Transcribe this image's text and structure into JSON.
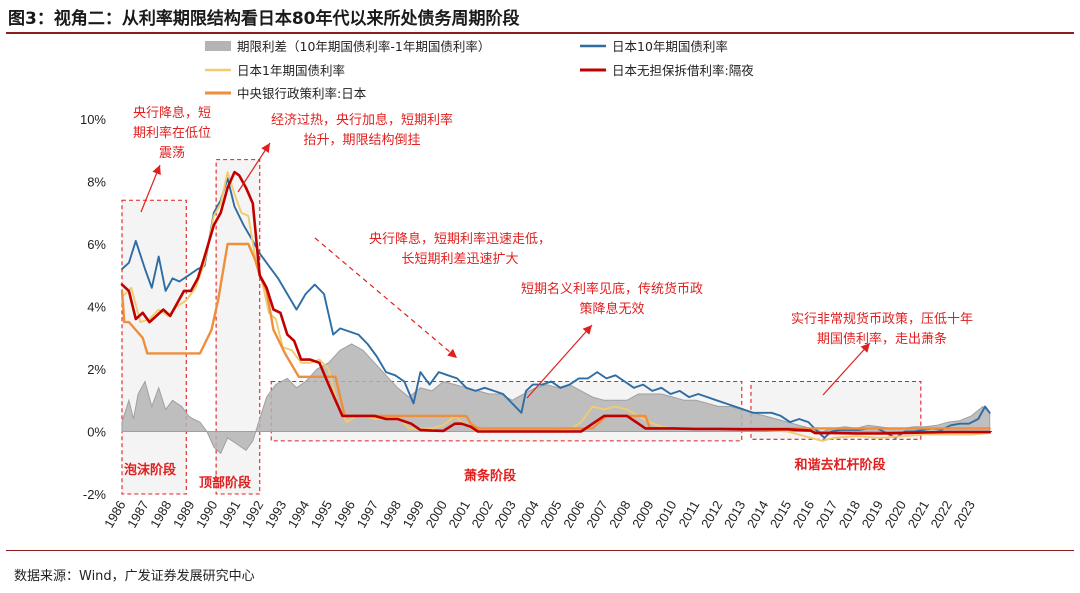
{
  "figure": {
    "title": "图3：视角二：从利率期限结构看日本80年代以来所处债务周期阶段",
    "source": "数据来源：Wind，广发证券发展研究中心"
  },
  "chart_data": {
    "type": "line",
    "title": "图3：视角二：从利率期限结构看日本80年代以来所处债务周期阶段",
    "xlabel": "",
    "ylabel": "",
    "ylim": [
      -2,
      10
    ],
    "xlim": [
      1986,
      2023.9
    ],
    "yticks": [
      "10%",
      "8%",
      "6%",
      "4%",
      "2%",
      "0%",
      "-2%"
    ],
    "xticks": [
      "1986",
      "1987",
      "1988",
      "1989",
      "1990",
      "1991",
      "1992",
      "1993",
      "1994",
      "1995",
      "1996",
      "1997",
      "1998",
      "1999",
      "2000",
      "2001",
      "2002",
      "2003",
      "2004",
      "2005",
      "2006",
      "2007",
      "2008",
      "2009",
      "2010",
      "2011",
      "2012",
      "2013",
      "2014",
      "2015",
      "2016",
      "2017",
      "2018",
      "2019",
      "2020",
      "2021",
      "2022",
      "2023"
    ],
    "legend": [
      {
        "key": "spread",
        "label": "期限利差（10年期国债利率-1年期国债利率）",
        "color": "#b4b4b4"
      },
      {
        "key": "jgb10",
        "label": "日本10年期国债利率",
        "color": "#2e6da4"
      },
      {
        "key": "jgb1",
        "label": "日本1年期国债利率",
        "color": "#f0cc6e"
      },
      {
        "key": "call",
        "label": "日本无担保拆借利率:隔夜",
        "color": "#c00000"
      },
      {
        "key": "policy",
        "label": "中央银行政策利率:日本",
        "color": "#ed8f3c"
      }
    ],
    "series": [
      {
        "name": "日本10年期国债利率",
        "key": "jgb10",
        "color": "#2e6da4",
        "x": [
          1986.0,
          1986.3,
          1986.6,
          1987.0,
          1987.3,
          1987.6,
          1987.9,
          1988.2,
          1988.5,
          1988.9,
          1989.3,
          1989.6,
          1990.0,
          1990.3,
          1990.6,
          1990.9,
          1991.3,
          1991.7,
          1992.0,
          1992.4,
          1992.8,
          1993.2,
          1993.6,
          1994.0,
          1994.4,
          1994.8,
          1995.2,
          1995.5,
          1995.9,
          1996.3,
          1996.7,
          1997.1,
          1997.5,
          1997.9,
          1998.3,
          1998.7,
          1999.0,
          1999.4,
          1999.8,
          2000.2,
          2000.6,
          2001.0,
          2001.4,
          2001.8,
          2002.2,
          2002.6,
          2003.0,
          2003.4,
          2003.6,
          2003.9,
          2004.3,
          2004.7,
          2005.1,
          2005.5,
          2005.9,
          2006.3,
          2006.7,
          2007.1,
          2007.5,
          2007.9,
          2008.3,
          2008.7,
          2009.1,
          2009.5,
          2009.9,
          2010.3,
          2010.7,
          2011.1,
          2011.5,
          2011.9,
          2012.3,
          2012.7,
          2013.1,
          2013.5,
          2013.9,
          2014.3,
          2014.7,
          2015.1,
          2015.5,
          2015.9,
          2016.3,
          2016.6,
          2016.9,
          2017.3,
          2017.7,
          2018.1,
          2018.5,
          2018.9,
          2019.3,
          2019.7,
          2020.1,
          2020.5,
          2020.9,
          2021.3,
          2021.7,
          2022.1,
          2022.5,
          2022.9,
          2023.3,
          2023.6,
          2023.8
        ],
        "y": [
          5.2,
          5.4,
          6.1,
          5.2,
          4.6,
          5.6,
          4.5,
          4.9,
          4.8,
          5.0,
          5.2,
          5.3,
          7.0,
          7.4,
          8.1,
          7.2,
          6.6,
          6.1,
          5.7,
          5.3,
          4.9,
          4.4,
          3.9,
          4.4,
          4.7,
          4.4,
          3.1,
          3.3,
          3.2,
          3.1,
          2.8,
          2.4,
          1.9,
          1.8,
          1.6,
          0.9,
          1.9,
          1.5,
          1.9,
          1.8,
          1.7,
          1.4,
          1.3,
          1.4,
          1.3,
          1.2,
          0.9,
          0.6,
          1.3,
          1.5,
          1.5,
          1.6,
          1.4,
          1.5,
          1.7,
          1.7,
          1.9,
          1.7,
          1.8,
          1.6,
          1.4,
          1.5,
          1.3,
          1.4,
          1.2,
          1.3,
          1.1,
          1.2,
          1.1,
          1.0,
          0.9,
          0.8,
          0.7,
          0.6,
          0.6,
          0.6,
          0.5,
          0.3,
          0.4,
          0.3,
          0.0,
          -0.2,
          0.0,
          0.05,
          0.05,
          0.05,
          0.1,
          0.1,
          -0.05,
          -0.2,
          0.0,
          0.0,
          0.05,
          0.1,
          0.05,
          0.2,
          0.25,
          0.25,
          0.4,
          0.8,
          0.6
        ]
      },
      {
        "name": "日本1年期国债利率",
        "key": "jgb1",
        "color": "#f0cc6e",
        "x": [
          1986.0,
          1986.4,
          1986.8,
          1987.2,
          1987.6,
          1988.0,
          1988.4,
          1988.8,
          1989.2,
          1989.6,
          1990.0,
          1990.3,
          1990.6,
          1990.9,
          1991.2,
          1991.5,
          1991.8,
          1992.1,
          1992.4,
          1992.7,
          1993.0,
          1993.4,
          1993.8,
          1994.2,
          1994.6,
          1995.0,
          1995.4,
          1995.8,
          1996.2,
          1996.6,
          1997.0,
          1997.5,
          1998.0,
          1998.5,
          1999.0,
          1999.5,
          2000.0,
          2000.5,
          2001.0,
          2001.4,
          2002.0,
          2003.0,
          2004.0,
          2005.0,
          2005.5,
          2006.0,
          2006.5,
          2007.0,
          2007.5,
          2008.0,
          2008.5,
          2009.0,
          2009.5,
          2010.0,
          2011.0,
          2012.0,
          2013.0,
          2014.0,
          2015.0,
          2016.0,
          2016.5,
          2017.0,
          2018.0,
          2019.0,
          2020.0,
          2021.0,
          2022.0,
          2023.0,
          2023.8
        ],
        "y": [
          4.3,
          4.6,
          3.5,
          3.6,
          3.9,
          3.7,
          4.0,
          4.2,
          4.6,
          5.4,
          6.9,
          7.3,
          8.3,
          7.6,
          7.0,
          6.9,
          5.6,
          4.8,
          3.8,
          3.6,
          2.7,
          2.6,
          2.2,
          2.2,
          2.3,
          2.0,
          0.8,
          0.3,
          0.5,
          0.5,
          0.4,
          0.4,
          0.5,
          0.1,
          0.1,
          0.1,
          0.2,
          0.5,
          0.2,
          0.02,
          0.01,
          0.01,
          0.01,
          0.01,
          0.05,
          0.3,
          0.8,
          0.7,
          0.8,
          0.7,
          0.5,
          0.3,
          0.15,
          0.1,
          0.1,
          0.1,
          0.1,
          0.05,
          0.0,
          -0.2,
          -0.3,
          -0.2,
          -0.15,
          -0.2,
          -0.15,
          -0.1,
          -0.1,
          -0.1,
          -0.05
        ]
      },
      {
        "name": "日本无担保拆借利率:隔夜",
        "key": "call",
        "color": "#c00000",
        "x": [
          1986.0,
          1986.3,
          1986.6,
          1986.9,
          1987.2,
          1987.5,
          1987.8,
          1988.1,
          1988.4,
          1988.7,
          1989.0,
          1989.3,
          1989.6,
          1990.0,
          1990.3,
          1990.6,
          1990.9,
          1991.1,
          1991.4,
          1991.7,
          1992.0,
          1992.3,
          1992.6,
          1992.9,
          1993.2,
          1993.5,
          1993.8,
          1994.2,
          1994.6,
          1995.0,
          1995.3,
          1995.6,
          1995.9,
          1996.5,
          1997.0,
          1997.5,
          1998.0,
          1998.6,
          1999.0,
          1999.5,
          2000.0,
          2000.5,
          2000.8,
          2001.2,
          2001.5,
          2002.0,
          2003.0,
          2004.0,
          2005.0,
          2006.0,
          2006.5,
          2007.0,
          2007.5,
          2008.0,
          2008.8,
          2009.0,
          2010.0,
          2011.0,
          2012.0,
          2013.0,
          2014.0,
          2015.0,
          2016.0,
          2016.2,
          2017.0,
          2018.0,
          2019.0,
          2020.0,
          2021.0,
          2022.0,
          2023.0,
          2023.8
        ],
        "y": [
          4.7,
          4.5,
          3.6,
          3.8,
          3.5,
          3.7,
          3.9,
          3.7,
          4.1,
          4.5,
          4.5,
          4.9,
          5.6,
          6.6,
          7.0,
          7.8,
          8.3,
          8.2,
          7.8,
          7.3,
          5.0,
          4.6,
          3.9,
          3.8,
          3.1,
          2.9,
          2.3,
          2.3,
          2.2,
          1.5,
          1.0,
          0.5,
          0.5,
          0.5,
          0.5,
          0.4,
          0.4,
          0.25,
          0.05,
          0.03,
          0.02,
          0.25,
          0.25,
          0.15,
          0.0,
          0.0,
          0.0,
          0.0,
          0.0,
          0.0,
          0.25,
          0.5,
          0.5,
          0.5,
          0.1,
          0.1,
          0.1,
          0.08,
          0.08,
          0.07,
          0.07,
          0.07,
          0.03,
          -0.05,
          -0.05,
          -0.06,
          -0.06,
          -0.05,
          -0.03,
          -0.02,
          -0.02,
          -0.02
        ]
      },
      {
        "name": "中央银行政策利率:日本",
        "key": "policy",
        "color": "#ed8f3c",
        "x": [
          1986.0,
          1986.1,
          1986.3,
          1986.9,
          1987.1,
          1989.4,
          1989.9,
          1990.2,
          1990.6,
          1991.5,
          1991.8,
          1992.0,
          1992.3,
          1992.6,
          1993.1,
          1993.7,
          1995.3,
          1995.7,
          2001.0,
          2001.2,
          2001.5,
          2002.0,
          2006.5,
          2007.1,
          2008.8,
          2008.9,
          2009.0,
          2023.8
        ],
        "y": [
          4.5,
          3.5,
          3.5,
          3.0,
          2.5,
          2.5,
          3.25,
          4.25,
          6.0,
          6.0,
          5.5,
          5.0,
          4.5,
          3.25,
          2.5,
          1.75,
          1.75,
          0.5,
          0.5,
          0.25,
          0.1,
          0.1,
          0.1,
          0.5,
          0.5,
          0.3,
          0.1,
          0.1
        ]
      },
      {
        "name": "期限利差（10年期国债利率-1年期国债利率）",
        "key": "spread",
        "color": "#b4b4b4",
        "fill": true,
        "x": [
          1986.0,
          1986.3,
          1986.5,
          1986.7,
          1987.0,
          1987.3,
          1987.6,
          1987.9,
          1988.2,
          1988.4,
          1988.6,
          1988.9,
          1989.1,
          1989.4,
          1989.7,
          1990.0,
          1990.3,
          1990.6,
          1991.0,
          1991.4,
          1991.7,
          1992.0,
          1992.3,
          1992.7,
          1993.2,
          1993.6,
          1994.0,
          1994.5,
          1995.0,
          1995.5,
          1996.0,
          1996.5,
          1997.0,
          1997.5,
          1998.0,
          1998.5,
          1999.0,
          1999.5,
          2000.0,
          2000.5,
          2001.0,
          2001.5,
          2002.0,
          2002.5,
          2003.0,
          2003.5,
          2004.0,
          2004.5,
          2005.0,
          2005.5,
          2006.0,
          2006.5,
          2007.0,
          2007.5,
          2008.0,
          2008.5,
          2009.0,
          2009.5,
          2010.0,
          2010.5,
          2011.0,
          2011.5,
          2012.0,
          2012.5,
          2013.0,
          2013.5,
          2014.0,
          2014.5,
          2015.0,
          2015.5,
          2016.0,
          2016.5,
          2017.0,
          2017.5,
          2018.0,
          2018.5,
          2019.0,
          2019.5,
          2020.0,
          2020.5,
          2021.0,
          2021.5,
          2022.0,
          2022.5,
          2023.0,
          2023.5,
          2023.8
        ],
        "y": [
          0.3,
          1.0,
          0.4,
          1.2,
          1.6,
          0.8,
          1.4,
          0.7,
          1.0,
          0.9,
          0.8,
          0.5,
          0.4,
          0.3,
          0.0,
          -0.5,
          -0.7,
          -0.2,
          -0.4,
          -0.6,
          -0.3,
          0.4,
          1.1,
          1.5,
          1.7,
          1.4,
          1.6,
          2.0,
          2.2,
          2.6,
          2.8,
          2.6,
          2.2,
          1.8,
          1.4,
          1.1,
          1.4,
          1.3,
          1.6,
          1.5,
          1.4,
          1.3,
          1.2,
          1.2,
          1.0,
          1.2,
          1.4,
          1.5,
          1.4,
          1.5,
          1.3,
          1.1,
          1.0,
          1.0,
          1.0,
          1.2,
          1.2,
          1.2,
          1.1,
          1.0,
          1.0,
          0.9,
          0.8,
          0.8,
          0.7,
          0.6,
          0.5,
          0.4,
          0.3,
          0.2,
          0.1,
          0.0,
          0.1,
          0.15,
          0.1,
          0.2,
          0.15,
          0.1,
          0.1,
          0.15,
          0.15,
          0.2,
          0.3,
          0.35,
          0.5,
          0.8,
          0.6
        ]
      }
    ],
    "regions": [
      {
        "from": 1986.0,
        "to": 1988.8,
        "y0": -2.0,
        "y1": 7.4,
        "label": "泡沫阶段"
      },
      {
        "from": 1990.1,
        "to": 1992.0,
        "y0": -2.0,
        "y1": 8.7,
        "label": "顶部阶段"
      },
      {
        "from": 1992.5,
        "to": 2013.0,
        "y0": -0.3,
        "y1": 1.6,
        "label": "萧条阶段"
      },
      {
        "from": 2013.4,
        "to": 2020.8,
        "y0": -0.25,
        "y1": 1.6,
        "label": "和谐去杠杆阶段"
      }
    ],
    "annotations": [
      {
        "lines": [
          "央行降息，短",
          "期利率在低位",
          "震荡"
        ]
      },
      {
        "lines": [
          "经济过热，央行加息，短期利率",
          "抬升，期限结构倒挂"
        ]
      },
      {
        "lines": [
          "央行降息，短期利率迅速走低，",
          "长短期利差迅速扩大"
        ]
      },
      {
        "lines": [
          "短期名义利率见底，传统货币政",
          "策降息无效"
        ]
      },
      {
        "lines": [
          "实行非常规货币政策，压低十年",
          "期国债利率，走出萧条"
        ]
      }
    ]
  }
}
